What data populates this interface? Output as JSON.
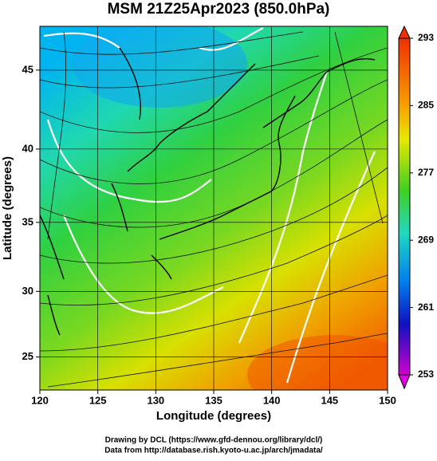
{
  "chart_data": {
    "type": "map",
    "title": "MSM 21Z25Apr2023 (850.0hPa)",
    "x_label": "Longitude (degrees)",
    "y_label": "Latitude  (degrees)",
    "xlim": [
      120,
      150
    ],
    "ylim": [
      22.4,
      47.6
    ],
    "xticks": [
      120,
      125,
      130,
      135,
      140,
      145,
      150
    ],
    "yticks": [
      25,
      30,
      35,
      40,
      45
    ],
    "colorbar": {
      "lim": [
        253,
        293
      ],
      "ticks": [
        253,
        261,
        269,
        277,
        285,
        293
      ]
    },
    "credits": [
      "Drawing by DCL (https://www.gfd-dennou.org/library/dcl/)",
      "Data from http://database.rish.kyoto-u.ac.jp/arch/jmadata/"
    ]
  }
}
